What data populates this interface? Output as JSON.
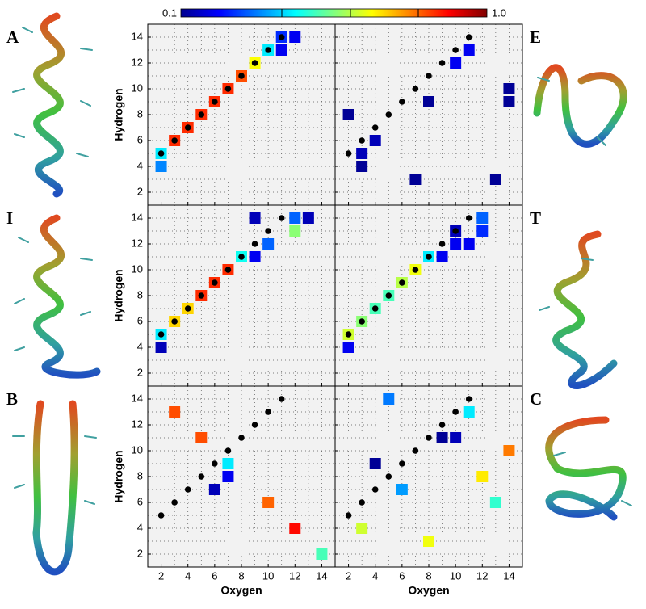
{
  "colorbar": {
    "zlim": [
      0.1,
      1
    ],
    "labels": [
      0.1,
      {
        "value": 1,
        "label": "1.0"
      }
    ]
  },
  "dots": {
    "x": [
      2,
      3,
      4,
      5,
      6,
      7,
      8,
      9,
      10,
      11
    ],
    "y": [
      5,
      6,
      7,
      8,
      9,
      10,
      11,
      12,
      13,
      14
    ]
  },
  "chart_data": [
    {
      "type": "scatter",
      "letter": "A",
      "ylabel": "Hydrogen",
      "xlim": [
        1,
        15
      ],
      "ylim": [
        1,
        15
      ],
      "xticks": [
        2,
        4,
        6,
        8,
        10,
        12,
        14
      ],
      "yticks": [
        2,
        4,
        6,
        8,
        10,
        12,
        14
      ],
      "squares": {
        "x": [
          2,
          2,
          3,
          4,
          5,
          6,
          7,
          8,
          9,
          10,
          11,
          11,
          12
        ],
        "y": [
          4,
          5,
          6,
          7,
          8,
          9,
          10,
          11,
          12,
          13,
          13,
          14,
          14
        ],
        "z": [
          0.33,
          0.42,
          0.85,
          0.85,
          0.85,
          0.85,
          0.85,
          0.82,
          0.66,
          0.42,
          0.2,
          0.25,
          0.2
        ]
      }
    },
    {
      "type": "scatter",
      "letter": "E",
      "xlim": [
        1,
        15
      ],
      "ylim": [
        1,
        15
      ],
      "xticks": [
        2,
        4,
        6,
        8,
        10,
        12,
        14
      ],
      "yticks": [
        2,
        4,
        6,
        8,
        10,
        12,
        14
      ],
      "squares": {
        "x": [
          2,
          3,
          3,
          4,
          7,
          8,
          10,
          11,
          13,
          14,
          14
        ],
        "y": [
          8,
          4,
          5,
          6,
          3,
          9,
          12,
          13,
          3,
          9,
          10
        ],
        "z": [
          0.12,
          0.12,
          0.15,
          0.15,
          0.12,
          0.12,
          0.2,
          0.2,
          0.12,
          0.12,
          0.12
        ]
      }
    },
    {
      "type": "scatter",
      "letter": "I",
      "ylabel": "Hydrogen",
      "xlim": [
        1,
        15
      ],
      "ylim": [
        1,
        15
      ],
      "xticks": [
        2,
        4,
        6,
        8,
        10,
        12,
        14
      ],
      "yticks": [
        2,
        4,
        6,
        8,
        10,
        12,
        14
      ],
      "squares": {
        "x": [
          2,
          2,
          3,
          4,
          5,
          6,
          7,
          8,
          9,
          9,
          10,
          12,
          12,
          13
        ],
        "y": [
          4,
          5,
          6,
          7,
          8,
          9,
          10,
          11,
          11,
          14,
          12,
          13,
          14,
          14
        ],
        "z": [
          0.15,
          0.42,
          0.7,
          0.7,
          0.85,
          0.85,
          0.85,
          0.45,
          0.2,
          0.15,
          0.3,
          0.56,
          0.3,
          0.15
        ]
      }
    },
    {
      "type": "scatter",
      "letter": "T",
      "xlim": [
        1,
        15
      ],
      "ylim": [
        1,
        15
      ],
      "xticks": [
        2,
        4,
        6,
        8,
        10,
        12,
        14
      ],
      "yticks": [
        2,
        4,
        6,
        8,
        10,
        12,
        14
      ],
      "squares": {
        "x": [
          2,
          2,
          3,
          4,
          5,
          6,
          7,
          8,
          9,
          10,
          10,
          11,
          12,
          12
        ],
        "y": [
          4,
          5,
          6,
          7,
          8,
          9,
          10,
          11,
          11,
          12,
          13,
          12,
          13,
          14
        ],
        "z": [
          0.2,
          0.62,
          0.56,
          0.5,
          0.5,
          0.6,
          0.65,
          0.42,
          0.2,
          0.2,
          0.15,
          0.2,
          0.25,
          0.3
        ]
      }
    },
    {
      "type": "scatter",
      "letter": "B",
      "ylabel": "Hydrogen",
      "xlabel": "Oxygen",
      "xlim": [
        1,
        15
      ],
      "ylim": [
        1,
        15
      ],
      "xticks": [
        2,
        4,
        6,
        8,
        10,
        12,
        14
      ],
      "yticks": [
        2,
        4,
        6,
        8,
        10,
        12,
        14
      ],
      "squares": {
        "x": [
          3,
          5,
          6,
          7,
          7,
          10,
          12,
          14
        ],
        "y": [
          13,
          11,
          7,
          8,
          9,
          6,
          4,
          2
        ],
        "z": [
          0.82,
          0.82,
          0.15,
          0.2,
          0.42,
          0.8,
          0.88,
          0.5
        ]
      }
    },
    {
      "type": "scatter",
      "letter": "C",
      "xlabel": "Oxygen",
      "xlim": [
        1,
        15
      ],
      "ylim": [
        1,
        15
      ],
      "xticks": [
        2,
        4,
        6,
        8,
        10,
        12,
        14
      ],
      "yticks": [
        2,
        4,
        6,
        8,
        10,
        12,
        14
      ],
      "squares": {
        "x": [
          3,
          4,
          5,
          6,
          8,
          9,
          10,
          11,
          12,
          13,
          14
        ],
        "y": [
          4,
          9,
          14,
          7,
          3,
          11,
          11,
          13,
          8,
          6,
          10
        ],
        "z": [
          0.62,
          0.12,
          0.32,
          0.35,
          0.65,
          0.12,
          0.15,
          0.42,
          0.68,
          0.48,
          0.78
        ]
      }
    }
  ]
}
